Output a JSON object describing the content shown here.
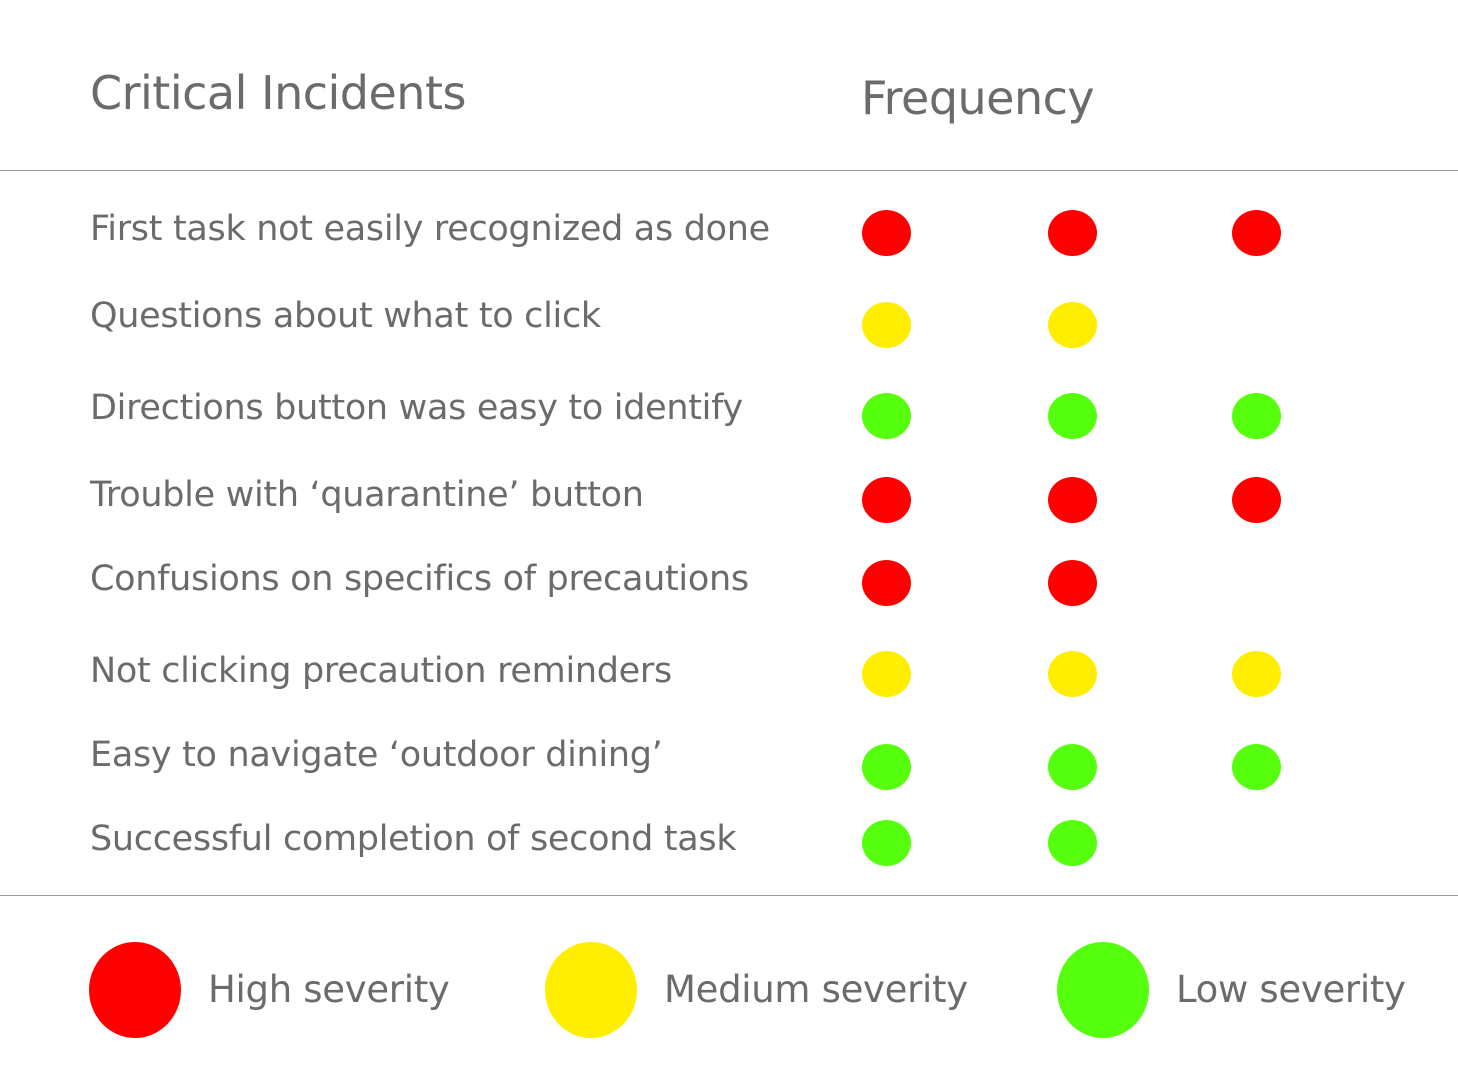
{
  "header": {
    "incidents_title": "Critical Incidents",
    "frequency_title": "Frequency"
  },
  "colors": {
    "high": "#ff0000",
    "medium": "#ffee00",
    "low": "#55ff0d"
  },
  "incidents": [
    {
      "label": "First task not easily recognized as done",
      "severity": "high",
      "frequency": 3
    },
    {
      "label": "Questions about what to click",
      "severity": "medium",
      "frequency": 2
    },
    {
      "label": "Directions button was easy to identify",
      "severity": "low",
      "frequency": 3
    },
    {
      "label": "Trouble with ‘quarantine’ button",
      "severity": "high",
      "frequency": 3
    },
    {
      "label": "Confusions on specifics of precautions",
      "severity": "high",
      "frequency": 2
    },
    {
      "label": "Not clicking precaution reminders",
      "severity": "medium",
      "frequency": 3
    },
    {
      "label": "Easy to navigate ‘outdoor dining’",
      "severity": "low",
      "frequency": 3
    },
    {
      "label": "Successful completion of second task",
      "severity": "low",
      "frequency": 2
    }
  ],
  "legend": [
    {
      "label": "High severity",
      "severity": "high"
    },
    {
      "label": "Medium severity",
      "severity": "medium"
    },
    {
      "label": "Low severity",
      "severity": "low"
    }
  ]
}
